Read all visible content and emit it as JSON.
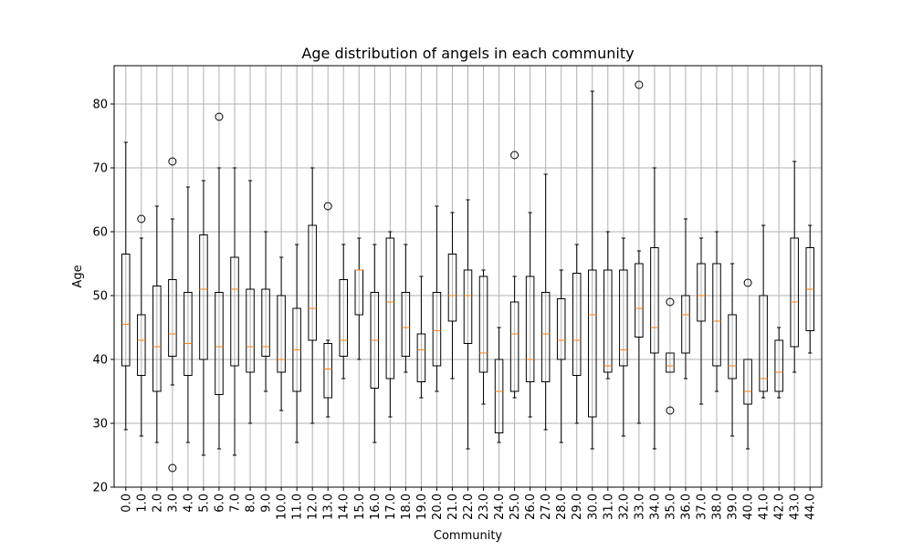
{
  "chart_data": {
    "type": "box",
    "title": "Age distribution of angels in each community",
    "xlabel": "Community",
    "ylabel": "Age",
    "ylim": [
      20,
      86
    ],
    "yticks": [
      20,
      30,
      40,
      50,
      60,
      70,
      80
    ],
    "grid": true,
    "colors": {
      "box": "#000000",
      "median": "#ff7f0e",
      "grid": "#b0b0b0"
    },
    "categories": [
      "0.0",
      "1.0",
      "2.0",
      "3.0",
      "4.0",
      "5.0",
      "6.0",
      "7.0",
      "8.0",
      "9.0",
      "10.0",
      "11.0",
      "12.0",
      "13.0",
      "14.0",
      "15.0",
      "16.0",
      "17.0",
      "18.0",
      "19.0",
      "20.0",
      "21.0",
      "22.0",
      "23.0",
      "24.0",
      "25.0",
      "26.0",
      "27.0",
      "28.0",
      "29.0",
      "30.0",
      "31.0",
      "32.0",
      "33.0",
      "34.0",
      "35.0",
      "36.0",
      "37.0",
      "38.0",
      "39.0",
      "40.0",
      "41.0",
      "42.0",
      "43.0",
      "44.0"
    ],
    "boxes": [
      {
        "whislo": 29,
        "q1": 39,
        "med": 45.5,
        "q3": 56.5,
        "whishi": 74,
        "fliers": []
      },
      {
        "whislo": 28,
        "q1": 37.5,
        "med": 43,
        "q3": 47,
        "whishi": 59,
        "fliers": [
          62
        ]
      },
      {
        "whislo": 27,
        "q1": 35,
        "med": 42,
        "q3": 51.5,
        "whishi": 64,
        "fliers": []
      },
      {
        "whislo": 36,
        "q1": 40.5,
        "med": 44,
        "q3": 52.5,
        "whishi": 62,
        "fliers": [
          71,
          23
        ]
      },
      {
        "whislo": 27,
        "q1": 37.5,
        "med": 42.5,
        "q3": 50.5,
        "whishi": 67,
        "fliers": []
      },
      {
        "whislo": 25,
        "q1": 40,
        "med": 51,
        "q3": 59.5,
        "whishi": 68,
        "fliers": []
      },
      {
        "whislo": 26,
        "q1": 34.5,
        "med": 42,
        "q3": 50.5,
        "whishi": 70,
        "fliers": [
          78
        ]
      },
      {
        "whislo": 25,
        "q1": 39,
        "med": 51,
        "q3": 56,
        "whishi": 70,
        "fliers": []
      },
      {
        "whislo": 30,
        "q1": 38,
        "med": 42,
        "q3": 51,
        "whishi": 68,
        "fliers": []
      },
      {
        "whislo": 35,
        "q1": 40.5,
        "med": 42,
        "q3": 51,
        "whishi": 60,
        "fliers": []
      },
      {
        "whislo": 32,
        "q1": 38,
        "med": 40,
        "q3": 50,
        "whishi": 56,
        "fliers": []
      },
      {
        "whislo": 27,
        "q1": 35,
        "med": 41.5,
        "q3": 48,
        "whishi": 58,
        "fliers": []
      },
      {
        "whislo": 30,
        "q1": 43,
        "med": 48,
        "q3": 61,
        "whishi": 70,
        "fliers": []
      },
      {
        "whislo": 31,
        "q1": 34,
        "med": 38.5,
        "q3": 42.5,
        "whishi": 43,
        "fliers": [
          64
        ]
      },
      {
        "whislo": 37,
        "q1": 40.5,
        "med": 43,
        "q3": 52.5,
        "whishi": 58,
        "fliers": []
      },
      {
        "whislo": 40,
        "q1": 47,
        "med": 54,
        "q3": 54,
        "whishi": 59,
        "fliers": []
      },
      {
        "whislo": 27,
        "q1": 35.5,
        "med": 43,
        "q3": 50.5,
        "whishi": 58,
        "fliers": []
      },
      {
        "whislo": 31,
        "q1": 37,
        "med": 49,
        "q3": 59,
        "whishi": 60,
        "fliers": []
      },
      {
        "whislo": 38,
        "q1": 40.5,
        "med": 45,
        "q3": 50.5,
        "whishi": 58,
        "fliers": []
      },
      {
        "whislo": 34,
        "q1": 36.5,
        "med": 41.5,
        "q3": 44,
        "whishi": 53,
        "fliers": []
      },
      {
        "whislo": 35,
        "q1": 39,
        "med": 44.5,
        "q3": 50.5,
        "whishi": 64,
        "fliers": []
      },
      {
        "whislo": 37,
        "q1": 46,
        "med": 50,
        "q3": 56.5,
        "whishi": 63,
        "fliers": []
      },
      {
        "whislo": 26,
        "q1": 42.5,
        "med": 50,
        "q3": 54,
        "whishi": 65,
        "fliers": []
      },
      {
        "whislo": 33,
        "q1": 38,
        "med": 41,
        "q3": 53,
        "whishi": 54,
        "fliers": []
      },
      {
        "whislo": 27,
        "q1": 28.5,
        "med": 35,
        "q3": 40,
        "whishi": 45,
        "fliers": []
      },
      {
        "whislo": 34,
        "q1": 35,
        "med": 44,
        "q3": 49,
        "whishi": 53,
        "fliers": [
          72
        ]
      },
      {
        "whislo": 31,
        "q1": 36.5,
        "med": 40,
        "q3": 53,
        "whishi": 63,
        "fliers": []
      },
      {
        "whislo": 29,
        "q1": 36.5,
        "med": 44,
        "q3": 50.5,
        "whishi": 69,
        "fliers": []
      },
      {
        "whislo": 27,
        "q1": 40,
        "med": 43,
        "q3": 49.5,
        "whishi": 54,
        "fliers": []
      },
      {
        "whislo": 30,
        "q1": 37.5,
        "med": 43,
        "q3": 53.5,
        "whishi": 58,
        "fliers": []
      },
      {
        "whislo": 26,
        "q1": 31,
        "med": 47,
        "q3": 54,
        "whishi": 82,
        "fliers": []
      },
      {
        "whislo": 37,
        "q1": 38,
        "med": 39,
        "q3": 54,
        "whishi": 60,
        "fliers": []
      },
      {
        "whislo": 28,
        "q1": 39,
        "med": 41.5,
        "q3": 54,
        "whishi": 59,
        "fliers": []
      },
      {
        "whislo": 30,
        "q1": 43.5,
        "med": 48,
        "q3": 55,
        "whishi": 57,
        "fliers": [
          83
        ]
      },
      {
        "whislo": 26,
        "q1": 41,
        "med": 45,
        "q3": 57.5,
        "whishi": 70,
        "fliers": []
      },
      {
        "whislo": 38,
        "q1": 38,
        "med": 39,
        "q3": 41,
        "whishi": 41,
        "fliers": [
          49,
          32
        ]
      },
      {
        "whislo": 37,
        "q1": 41,
        "med": 47,
        "q3": 50,
        "whishi": 62,
        "fliers": []
      },
      {
        "whislo": 33,
        "q1": 46,
        "med": 50,
        "q3": 55,
        "whishi": 59,
        "fliers": []
      },
      {
        "whislo": 35,
        "q1": 39,
        "med": 46,
        "q3": 55,
        "whishi": 60,
        "fliers": []
      },
      {
        "whislo": 28,
        "q1": 37,
        "med": 39,
        "q3": 47,
        "whishi": 55,
        "fliers": []
      },
      {
        "whislo": 26,
        "q1": 33,
        "med": 35,
        "q3": 40,
        "whishi": 40,
        "fliers": [
          52
        ]
      },
      {
        "whislo": 34,
        "q1": 35,
        "med": 37,
        "q3": 50,
        "whishi": 61,
        "fliers": []
      },
      {
        "whislo": 34,
        "q1": 35,
        "med": 38,
        "q3": 43,
        "whishi": 45,
        "fliers": []
      },
      {
        "whislo": 38,
        "q1": 42,
        "med": 49,
        "q3": 59,
        "whishi": 71,
        "fliers": []
      },
      {
        "whislo": 41,
        "q1": 44.5,
        "med": 51,
        "q3": 57.5,
        "whishi": 61,
        "fliers": []
      }
    ]
  }
}
